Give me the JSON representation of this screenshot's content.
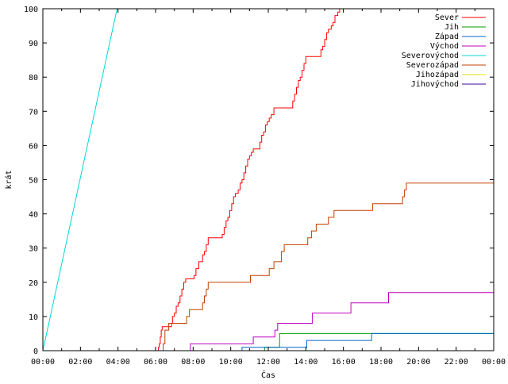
{
  "chart_data": {
    "type": "line",
    "title": "",
    "xlabel": "Čas",
    "ylabel": "krát",
    "xlim": [
      "00:00",
      "24:00"
    ],
    "ylim": [
      0,
      100
    ],
    "x_ticks": [
      "00:00",
      "02:00",
      "04:00",
      "06:00",
      "08:00",
      "10:00",
      "12:00",
      "14:00",
      "16:00",
      "18:00",
      "20:00",
      "22:00",
      "00:00"
    ],
    "y_ticks": [
      0,
      10,
      20,
      30,
      40,
      50,
      60,
      70,
      80,
      90,
      100
    ],
    "grid": false,
    "legend_position": "top-right",
    "x_unit": "hours",
    "series": [
      {
        "name": "Sever",
        "color": "#ff0000",
        "step": true,
        "points": [
          [
            0,
            0
          ],
          [
            6.15,
            0
          ],
          [
            6.15,
            1
          ],
          [
            6.2,
            2
          ],
          [
            6.25,
            4
          ],
          [
            6.3,
            6
          ],
          [
            6.35,
            7
          ],
          [
            6.8,
            7
          ],
          [
            6.85,
            8
          ],
          [
            6.9,
            10
          ],
          [
            7.0,
            11
          ],
          [
            7.1,
            13
          ],
          [
            7.2,
            14
          ],
          [
            7.3,
            16
          ],
          [
            7.4,
            18
          ],
          [
            7.5,
            20
          ],
          [
            7.6,
            21
          ],
          [
            8.0,
            21
          ],
          [
            8.05,
            22
          ],
          [
            8.15,
            24
          ],
          [
            8.3,
            26
          ],
          [
            8.45,
            26
          ],
          [
            8.5,
            28
          ],
          [
            8.6,
            29
          ],
          [
            8.7,
            31
          ],
          [
            8.8,
            33
          ],
          [
            9.5,
            33
          ],
          [
            9.55,
            34
          ],
          [
            9.65,
            36
          ],
          [
            9.75,
            38
          ],
          [
            9.85,
            39
          ],
          [
            9.95,
            41
          ],
          [
            10.05,
            43
          ],
          [
            10.15,
            45
          ],
          [
            10.25,
            46
          ],
          [
            10.4,
            47
          ],
          [
            10.5,
            49
          ],
          [
            10.6,
            50
          ],
          [
            10.7,
            52
          ],
          [
            10.8,
            54
          ],
          [
            10.9,
            56
          ],
          [
            11.0,
            57
          ],
          [
            11.1,
            58
          ],
          [
            11.2,
            59
          ],
          [
            11.45,
            59
          ],
          [
            11.55,
            61
          ],
          [
            11.65,
            63
          ],
          [
            11.75,
            64
          ],
          [
            11.85,
            66
          ],
          [
            11.95,
            67
          ],
          [
            12.05,
            68
          ],
          [
            12.15,
            69
          ],
          [
            12.3,
            71
          ],
          [
            13.2,
            71
          ],
          [
            13.3,
            73
          ],
          [
            13.4,
            75
          ],
          [
            13.5,
            77
          ],
          [
            13.6,
            79
          ],
          [
            13.7,
            80
          ],
          [
            13.8,
            82
          ],
          [
            13.9,
            84
          ],
          [
            14.0,
            86
          ],
          [
            14.7,
            86
          ],
          [
            14.8,
            88
          ],
          [
            14.9,
            89
          ],
          [
            15.0,
            91
          ],
          [
            15.1,
            93
          ],
          [
            15.2,
            94
          ],
          [
            15.35,
            95
          ],
          [
            15.45,
            96
          ],
          [
            15.55,
            98
          ],
          [
            15.7,
            99
          ],
          [
            15.8,
            100
          ]
        ]
      },
      {
        "name": "Jih",
        "color": "#00a000",
        "step": true,
        "points": [
          [
            0,
            0
          ],
          [
            11.8,
            0
          ],
          [
            11.8,
            1
          ],
          [
            12.6,
            1
          ],
          [
            12.6,
            5
          ],
          [
            24,
            5
          ]
        ]
      },
      {
        "name": "Západ",
        "color": "#0066cc",
        "step": true,
        "points": [
          [
            0,
            0
          ],
          [
            10.6,
            0
          ],
          [
            10.6,
            1
          ],
          [
            14.05,
            1
          ],
          [
            14.05,
            3
          ],
          [
            17.5,
            3
          ],
          [
            17.5,
            5
          ],
          [
            24,
            5
          ]
        ]
      },
      {
        "name": "Východ",
        "color": "#c000c0",
        "step": true,
        "points": [
          [
            0,
            0
          ],
          [
            7.85,
            0
          ],
          [
            7.85,
            2
          ],
          [
            11.2,
            2
          ],
          [
            11.2,
            4
          ],
          [
            12.35,
            4
          ],
          [
            12.35,
            6
          ],
          [
            12.5,
            6
          ],
          [
            12.5,
            8
          ],
          [
            14.35,
            8
          ],
          [
            14.35,
            11
          ],
          [
            16.4,
            11
          ],
          [
            16.4,
            14
          ],
          [
            18.4,
            14
          ],
          [
            18.4,
            17
          ],
          [
            24,
            17
          ]
        ]
      },
      {
        "name": "Severovýchod",
        "color": "#00d8d8",
        "step": false,
        "points": [
          [
            0,
            0
          ],
          [
            3.95,
            100
          ]
        ]
      },
      {
        "name": "Severozápad",
        "color": "#c04000",
        "step": true,
        "points": [
          [
            0,
            0
          ],
          [
            6.4,
            0
          ],
          [
            6.4,
            2
          ],
          [
            6.5,
            6
          ],
          [
            6.7,
            8
          ],
          [
            7.55,
            8
          ],
          [
            7.65,
            10
          ],
          [
            7.8,
            12
          ],
          [
            8.4,
            12
          ],
          [
            8.5,
            14
          ],
          [
            8.6,
            16
          ],
          [
            8.7,
            18
          ],
          [
            8.8,
            20
          ],
          [
            10.95,
            20
          ],
          [
            11.05,
            22
          ],
          [
            12.0,
            22
          ],
          [
            12.05,
            24
          ],
          [
            12.3,
            26
          ],
          [
            12.55,
            26
          ],
          [
            12.7,
            29
          ],
          [
            12.85,
            31
          ],
          [
            14.0,
            31
          ],
          [
            14.1,
            33
          ],
          [
            14.3,
            35
          ],
          [
            14.55,
            37
          ],
          [
            15.0,
            37
          ],
          [
            15.2,
            39
          ],
          [
            15.5,
            41
          ],
          [
            17.4,
            41
          ],
          [
            17.55,
            43
          ],
          [
            19.05,
            43
          ],
          [
            19.15,
            45
          ],
          [
            19.25,
            47
          ],
          [
            19.35,
            49
          ],
          [
            24,
            49
          ]
        ]
      },
      {
        "name": "Jihozápad",
        "color": "#e0e000",
        "step": true,
        "points": [
          [
            0,
            0
          ],
          [
            24,
            0
          ]
        ]
      },
      {
        "name": "Jihovýchod",
        "color": "#4000a0",
        "step": true,
        "points": [
          [
            0,
            0
          ],
          [
            24,
            0
          ]
        ]
      }
    ]
  }
}
